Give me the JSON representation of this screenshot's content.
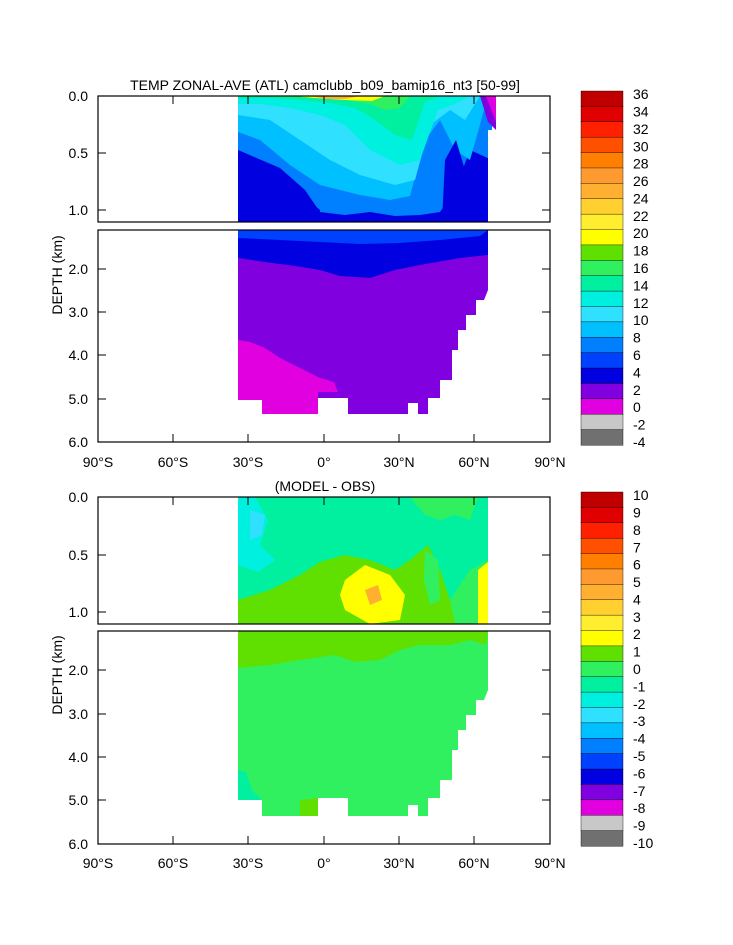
{
  "chart_data": [
    {
      "type": "heatmap",
      "title": "TEMP ZONAL-AVE (ATL) camclubb_b09_bamip16_nt3 [50-99]",
      "ylabel": "DEPTH (km)",
      "upper_yticks": [
        "0.0",
        "0.5",
        "1.0"
      ],
      "lower_yticks": [
        "2.0",
        "3.0",
        "4.0",
        "5.0",
        "6.0"
      ],
      "xticks": [
        "90°S",
        "60°S",
        "30°S",
        "0°",
        "30°N",
        "60°N",
        "90°N"
      ],
      "xlim": [
        -90,
        90
      ],
      "ylim_upper_km": [
        0.0,
        1.1
      ],
      "ylim_lower_km": [
        1.1,
        6.0
      ],
      "colorbar": {
        "labels": [
          "36",
          "34",
          "32",
          "30",
          "28",
          "26",
          "24",
          "22",
          "20",
          "18",
          "16",
          "14",
          "12",
          "10",
          "8",
          "6",
          "4",
          "2",
          "0",
          "-2",
          "-4"
        ],
        "colors": [
          "#c00000",
          "#e00000",
          "#ff2000",
          "#ff5000",
          "#ff8000",
          "#ff9a30",
          "#ffb030",
          "#ffd030",
          "#ffee30",
          "#ffff00",
          "#60e000",
          "#30f060",
          "#00f0a0",
          "#00f0e0",
          "#30e0ff",
          "#00c0ff",
          "#0080ff",
          "#0040ff",
          "#0000e0",
          "#8000e0",
          "#e000e0",
          "#c8c8c8",
          "#707070"
        ]
      }
    },
    {
      "type": "heatmap",
      "title": "(MODEL - OBS)",
      "ylabel": "DEPTH (km)",
      "upper_yticks": [
        "0.0",
        "0.5",
        "1.0"
      ],
      "lower_yticks": [
        "2.0",
        "3.0",
        "4.0",
        "5.0",
        "6.0"
      ],
      "xticks": [
        "90°S",
        "60°S",
        "30°S",
        "0°",
        "30°N",
        "60°N",
        "90°N"
      ],
      "xlim": [
        -90,
        90
      ],
      "ylim_upper_km": [
        0.0,
        1.1
      ],
      "ylim_lower_km": [
        1.1,
        6.0
      ],
      "colorbar": {
        "labels": [
          "10",
          "9",
          "8",
          "7",
          "6",
          "5",
          "4",
          "3",
          "2",
          "1",
          "0",
          "-1",
          "-2",
          "-3",
          "-4",
          "-5",
          "-6",
          "-7",
          "-8",
          "-9",
          "-10"
        ],
        "colors": [
          "#c00000",
          "#e00000",
          "#ff2000",
          "#ff5000",
          "#ff8000",
          "#ff9a30",
          "#ffb030",
          "#ffd030",
          "#ffee30",
          "#ffff00",
          "#60e000",
          "#30f060",
          "#00f0a0",
          "#00f0e0",
          "#30e0ff",
          "#00c0ff",
          "#0080ff",
          "#0040ff",
          "#0000e0",
          "#8000e0",
          "#e000e0",
          "#c8c8c8",
          "#707070"
        ]
      }
    }
  ]
}
